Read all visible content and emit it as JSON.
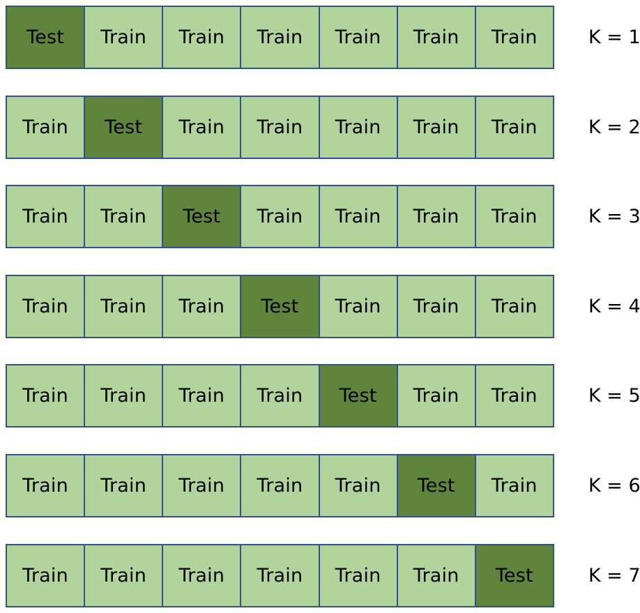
{
  "colors": {
    "train_fill": "#b1d39c",
    "test_fill": "#5f843c",
    "border": "#2f528f"
  },
  "folds": [
    {
      "label": "K = 1",
      "cells": [
        "Test",
        "Train",
        "Train",
        "Train",
        "Train",
        "Train",
        "Train"
      ]
    },
    {
      "label": "K = 2",
      "cells": [
        "Train",
        "Test",
        "Train",
        "Train",
        "Train",
        "Train",
        "Train"
      ]
    },
    {
      "label": "K = 3",
      "cells": [
        "Train",
        "Train",
        "Test",
        "Train",
        "Train",
        "Train",
        "Train"
      ]
    },
    {
      "label": "K = 4",
      "cells": [
        "Train",
        "Train",
        "Train",
        "Test",
        "Train",
        "Train",
        "Train"
      ]
    },
    {
      "label": "K = 5",
      "cells": [
        "Train",
        "Train",
        "Train",
        "Train",
        "Test",
        "Train",
        "Train"
      ]
    },
    {
      "label": "K = 6",
      "cells": [
        "Train",
        "Train",
        "Train",
        "Train",
        "Train",
        "Test",
        "Train"
      ]
    },
    {
      "label": "K = 7",
      "cells": [
        "Train",
        "Train",
        "Train",
        "Train",
        "Train",
        "Train",
        "Test"
      ]
    }
  ]
}
